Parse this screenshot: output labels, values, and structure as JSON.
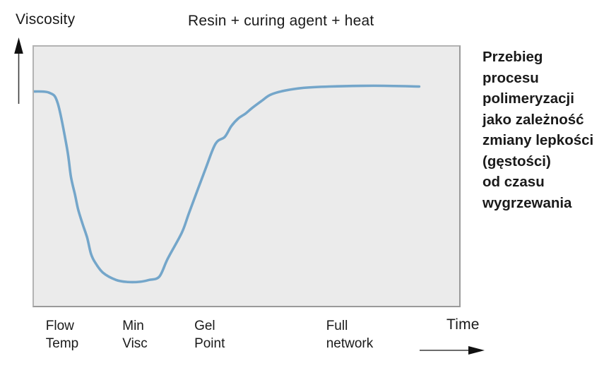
{
  "title": "Resin + curing agent + heat",
  "y_axis_label": "Viscosity",
  "x_axis_label": "Time",
  "caption": {
    "lines": [
      "Przebieg",
      "procesu",
      "polimeryzacji",
      "jako zależność",
      "zmiany lepkości",
      "(gęstości)",
      "od czasu",
      "wygrzewania"
    ]
  },
  "colors": {
    "curve": "#74a6ca",
    "plot_background": "#ebebeb",
    "plot_border": "#a8a8a8",
    "text": "#1a1a1a"
  },
  "chart_data": {
    "type": "line",
    "title": "Resin + curing agent + heat",
    "xlabel": "Time",
    "ylabel": "Viscosity",
    "grid": false,
    "legend": false,
    "axes": "unlabeled qualitative axes; arrows indicate increasing viscosity (up) and time (right)",
    "x_range_percent": [
      0,
      100
    ],
    "y_range_percent": [
      0,
      100
    ],
    "series": [
      {
        "name": "viscosity-vs-time",
        "color": "#74a6ca",
        "stroke_width": 3.6,
        "points": [
          [
            0,
            82.7
          ],
          [
            3.6,
            82.2
          ],
          [
            5.6,
            78.2
          ],
          [
            7.8,
            60.6
          ],
          [
            8.7,
            49.9
          ],
          [
            9.7,
            42.6
          ],
          [
            10.4,
            37.2
          ],
          [
            11.4,
            31.8
          ],
          [
            12.5,
            26.4
          ],
          [
            13.4,
            20.2
          ],
          [
            14.4,
            16.7
          ],
          [
            16.3,
            12.7
          ],
          [
            19.3,
            10.0
          ],
          [
            22.1,
            9.2
          ],
          [
            25.0,
            9.3
          ],
          [
            27.1,
            10.0
          ],
          [
            29.5,
            11.3
          ],
          [
            31.5,
            18.3
          ],
          [
            34.8,
            28.3
          ],
          [
            36.6,
            36.4
          ],
          [
            40.3,
            52.6
          ],
          [
            42.7,
            62.5
          ],
          [
            44.9,
            65.2
          ],
          [
            46.4,
            69.3
          ],
          [
            48.0,
            72.2
          ],
          [
            49.7,
            74.1
          ],
          [
            51.3,
            76.3
          ],
          [
            53.5,
            79.0
          ],
          [
            55.6,
            81.4
          ],
          [
            58.9,
            83.0
          ],
          [
            63.4,
            84.1
          ],
          [
            69.5,
            84.6
          ],
          [
            79.9,
            84.9
          ],
          [
            90.6,
            84.6
          ]
        ]
      }
    ],
    "annotations": [
      {
        "lines": [
          "Flow",
          "Temp"
        ],
        "x_percent": 3.1
      },
      {
        "lines": [
          "Min",
          "Visc"
        ],
        "x_percent": 21.0
      },
      {
        "lines": [
          "Gel",
          "Point"
        ],
        "x_percent": 37.8
      },
      {
        "lines": [
          "Full",
          "network"
        ],
        "x_percent": 68.6
      }
    ]
  }
}
